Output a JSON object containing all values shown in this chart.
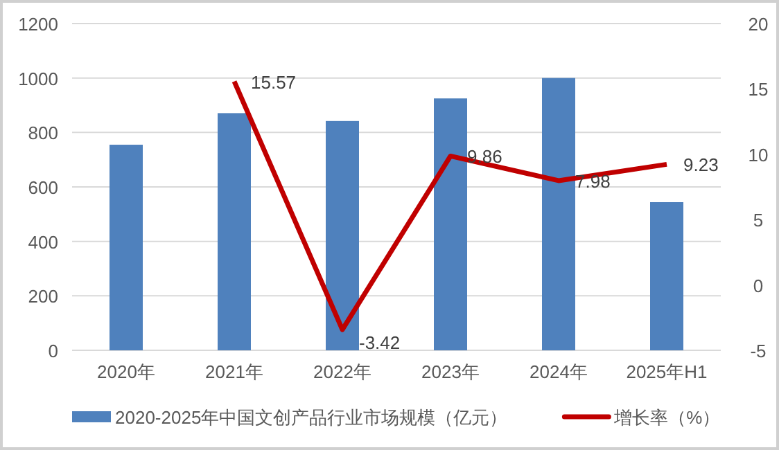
{
  "chart_data": {
    "type": "bar",
    "categories": [
      "2020年",
      "2021年",
      "2022年",
      "2023年",
      "2024年",
      "2025年H1"
    ],
    "series": [
      {
        "name": "2020-2025年中国文创产品行业市场规模（亿元）",
        "color": "#4f81bd",
        "values": [
          755,
          871,
          842,
          925,
          1000,
          544
        ]
      },
      {
        "name": "增长率（%）",
        "type": "line",
        "axis": "y2",
        "color": "#c00000",
        "values": [
          null,
          15.57,
          -3.42,
          9.86,
          7.98,
          9.23
        ],
        "data_labels": true
      }
    ],
    "ylim": [
      0,
      1200
    ],
    "yticks": [
      0,
      200,
      400,
      600,
      800,
      1000,
      1200
    ],
    "y2lim": [
      -5,
      20
    ],
    "y2ticks": [
      -5,
      0,
      5,
      10,
      15,
      20
    ],
    "grid": "y",
    "legend": "bottom",
    "line_style": "solid"
  }
}
